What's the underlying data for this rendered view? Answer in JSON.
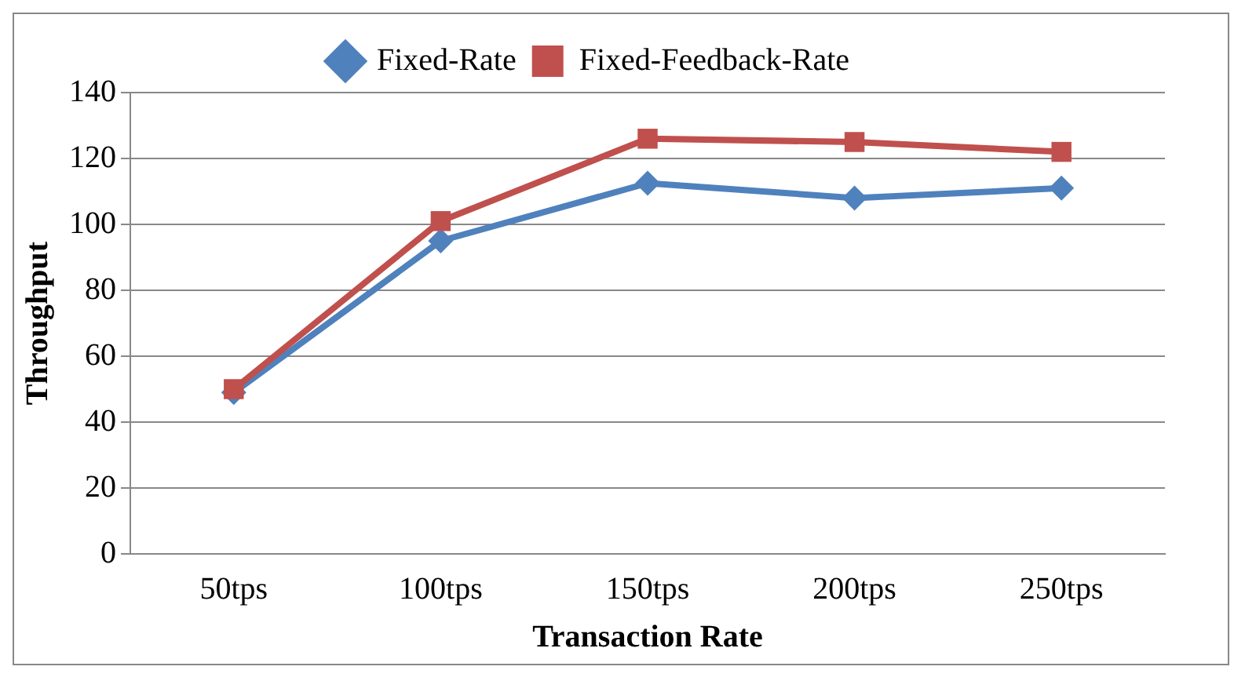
{
  "chart_data": {
    "type": "line",
    "xlabel": "Transaction Rate",
    "ylabel": "Throughput",
    "categories": [
      "50tps",
      "100tps",
      "150tps",
      "200tps",
      "250tps"
    ],
    "series": [
      {
        "name": "Fixed-Rate",
        "color": "#4f81bd",
        "marker": "diamond",
        "values": [
          49,
          95,
          112.5,
          108,
          111
        ]
      },
      {
        "name": "Fixed-Feedback-Rate",
        "color": "#c0504d",
        "marker": "square",
        "values": [
          50,
          101,
          126,
          125,
          122
        ]
      }
    ],
    "ylim": [
      0,
      140
    ],
    "yticks": [
      0,
      20,
      40,
      60,
      80,
      100,
      120,
      140
    ],
    "grid": "y",
    "legend": "top"
  }
}
